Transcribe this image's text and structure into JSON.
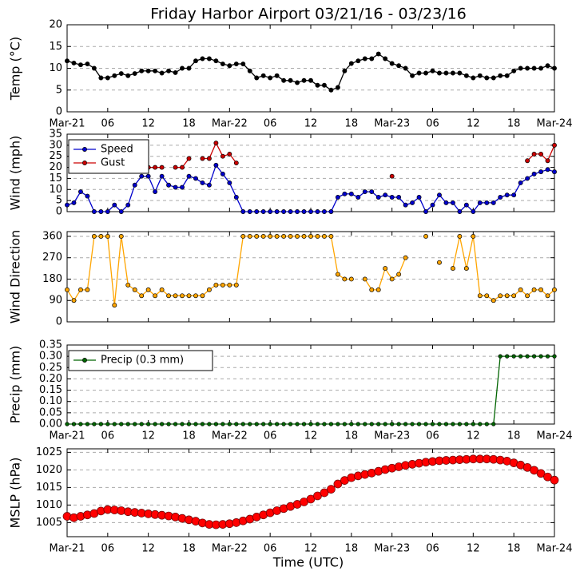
{
  "title": "Friday Harbor Airport 03/21/16 - 03/23/16",
  "xlabel": "Time (UTC)",
  "x": [
    0,
    1,
    2,
    3,
    4,
    5,
    6,
    7,
    8,
    9,
    10,
    11,
    12,
    13,
    14,
    15,
    16,
    17,
    18,
    19,
    20,
    21,
    22,
    23,
    24,
    25,
    26,
    27,
    28,
    29,
    30,
    31,
    32,
    33,
    34,
    35,
    36,
    37,
    38,
    39,
    40,
    41,
    42,
    43,
    44,
    45,
    46,
    47,
    48,
    49,
    50,
    51,
    52,
    53,
    54,
    55,
    56,
    57,
    58,
    59,
    60,
    61,
    62,
    63,
    64,
    65,
    66,
    67,
    68,
    69,
    70,
    71,
    72
  ],
  "xlim": [
    0,
    72
  ],
  "xticks": [
    {
      "value": 0,
      "label": "Mar-21"
    },
    {
      "value": 6,
      "label": "06"
    },
    {
      "value": 12,
      "label": "12"
    },
    {
      "value": 18,
      "label": "18"
    },
    {
      "value": 24,
      "label": "Mar-22"
    },
    {
      "value": 30,
      "label": "06"
    },
    {
      "value": 36,
      "label": "12"
    },
    {
      "value": 42,
      "label": "18"
    },
    {
      "value": 48,
      "label": "Mar-23"
    },
    {
      "value": 54,
      "label": "06"
    },
    {
      "value": 60,
      "label": "12"
    },
    {
      "value": 66,
      "label": "18"
    },
    {
      "value": 72,
      "label": "Mar-24"
    }
  ],
  "chart_data": [
    {
      "type": "line",
      "ylabel": "Temp (°C)",
      "ylim": [
        0,
        20
      ],
      "yticks": [
        0,
        5,
        10,
        15,
        20
      ],
      "grid": true,
      "x_tick_labels": true,
      "series": [
        {
          "name": "Temp",
          "color": "#000000",
          "values": [
            11.7,
            11.2,
            10.8,
            11,
            10,
            7.8,
            7.8,
            8.3,
            8.8,
            8.3,
            8.8,
            9.4,
            9.4,
            9.4,
            8.9,
            9.4,
            9,
            10,
            10,
            11.7,
            12.2,
            12.2,
            11.7,
            11,
            10.6,
            11,
            11,
            9.4,
            7.8,
            8.3,
            7.8,
            8.3,
            7.2,
            7.2,
            6.7,
            7.2,
            7.2,
            6.1,
            6.1,
            5,
            5.6,
            9.4,
            11.1,
            11.7,
            12.2,
            12.2,
            13.3,
            12.2,
            11.1,
            10.6,
            10,
            8.3,
            8.9,
            8.9,
            9.4,
            8.9,
            8.9,
            8.9,
            8.9,
            8.3,
            7.8,
            8.3,
            7.8,
            7.8,
            8.3,
            8.3,
            9.4,
            10,
            10,
            10,
            10,
            10.6,
            10
          ]
        }
      ]
    },
    {
      "type": "line",
      "ylabel": "Wind (mph)",
      "ylim": [
        0,
        35
      ],
      "yticks": [
        0,
        5,
        10,
        15,
        20,
        25,
        30,
        35
      ],
      "grid": true,
      "x_tick_labels": false,
      "legend": "upper left",
      "series": [
        {
          "name": "Speed",
          "color": "#0000cc",
          "values": [
            3,
            4,
            9,
            7,
            0,
            0,
            0,
            3,
            0,
            3,
            12,
            16,
            16,
            9,
            16,
            12,
            11,
            11,
            16,
            15,
            13,
            12,
            21,
            17,
            13,
            6.5,
            0,
            0,
            0,
            0,
            0,
            0,
            0,
            0,
            0,
            0,
            0,
            0,
            0,
            0,
            6.5,
            8,
            8,
            6.5,
            9,
            9,
            6.5,
            7.5,
            6.5,
            6.5,
            3,
            4,
            6.5,
            0,
            3,
            7.5,
            4,
            4,
            0,
            3,
            0,
            4,
            4,
            4,
            6.5,
            7.5,
            7.5,
            13,
            15,
            17,
            18,
            19,
            18
          ]
        },
        {
          "name": "Gust",
          "color": "#cc0000",
          "values": [
            null,
            null,
            null,
            null,
            null,
            null,
            null,
            null,
            null,
            null,
            null,
            21,
            20,
            20,
            20,
            null,
            20,
            20,
            24,
            null,
            24,
            24,
            31,
            25,
            26,
            22,
            null,
            null,
            null,
            null,
            null,
            null,
            null,
            null,
            null,
            null,
            null,
            null,
            null,
            null,
            null,
            null,
            null,
            null,
            null,
            null,
            null,
            null,
            16,
            null,
            null,
            null,
            null,
            null,
            null,
            null,
            null,
            null,
            null,
            null,
            null,
            null,
            null,
            null,
            null,
            null,
            null,
            null,
            23,
            26,
            26,
            23,
            30
          ]
        }
      ]
    },
    {
      "type": "line",
      "ylabel": "Wind Direction",
      "ylim": [
        0,
        380
      ],
      "yticks": [
        0,
        90,
        180,
        270,
        360
      ],
      "grid": true,
      "x_tick_labels": false,
      "series": [
        {
          "name": "Direction",
          "color": "#ffa500",
          "values": [
            135,
            90,
            135,
            135,
            360,
            360,
            360,
            70,
            360,
            155,
            135,
            110,
            135,
            110,
            135,
            110,
            110,
            110,
            110,
            110,
            110,
            135,
            155,
            155,
            155,
            155,
            360,
            360,
            360,
            360,
            360,
            360,
            360,
            360,
            360,
            360,
            360,
            360,
            360,
            360,
            200,
            180,
            180,
            null,
            180,
            135,
            135,
            225,
            180,
            200,
            270,
            null,
            null,
            360,
            null,
            250,
            null,
            225,
            360,
            225,
            360,
            110,
            110,
            90,
            110,
            110,
            110,
            135,
            110,
            135,
            135,
            110,
            135
          ]
        }
      ]
    },
    {
      "type": "line",
      "ylabel": "Precip (mm)",
      "ylim": [
        0,
        0.35
      ],
      "yticks": [
        {
          "value": 0,
          "label": "0.00"
        },
        0.05,
        {
          "value": 0.1,
          "label": "0.10"
        },
        0.15,
        {
          "value": 0.2,
          "label": "0.20"
        },
        0.25,
        {
          "value": 0.3,
          "label": "0.30"
        },
        0.35
      ],
      "grid": true,
      "x_tick_labels": true,
      "legend": "upper left",
      "series": [
        {
          "name": "Precip (0.3 mm)",
          "color": "#006400",
          "values": [
            0,
            0,
            0,
            0,
            0,
            0,
            0,
            0,
            0,
            0,
            0,
            0,
            0,
            0,
            0,
            0,
            0,
            0,
            0,
            0,
            0,
            0,
            0,
            0,
            0,
            0,
            0,
            0,
            0,
            0,
            0,
            0,
            0,
            0,
            0,
            0,
            0,
            0,
            0,
            0,
            0,
            0,
            0,
            0,
            0,
            0,
            0,
            0,
            0,
            0,
            0,
            0,
            0,
            0,
            0,
            0,
            0,
            0,
            0,
            0,
            0,
            0,
            0,
            0,
            0.3,
            0.3,
            0.3,
            0.3,
            0.3,
            0.3,
            0.3,
            0.3,
            0.3
          ]
        }
      ]
    },
    {
      "type": "line",
      "ylabel": "MSLP (hPa)",
      "ylim": [
        1001,
        1026
      ],
      "yticks": [
        1005,
        1010,
        1015,
        1020,
        1025
      ],
      "grid": true,
      "x_tick_labels": true,
      "series": [
        {
          "name": "MSLP",
          "color": "#ff0000",
          "values": [
            1006.8,
            1006.4,
            1006.8,
            1007.2,
            1007.6,
            1008.3,
            1008.7,
            1008.6,
            1008.4,
            1008.1,
            1007.9,
            1007.7,
            1007.5,
            1007.3,
            1007.1,
            1006.9,
            1006.6,
            1006.2,
            1005.8,
            1005.4,
            1004.9,
            1004.5,
            1004.4,
            1004.5,
            1004.7,
            1005,
            1005.5,
            1006,
            1006.6,
            1007.2,
            1007.8,
            1008.4,
            1009,
            1009.6,
            1010.2,
            1010.9,
            1011.7,
            1012.6,
            1013.5,
            1014.5,
            1016,
            1017,
            1017.8,
            1018.3,
            1018.7,
            1019.1,
            1019.6,
            1020.1,
            1020.5,
            1020.9,
            1021.3,
            1021.6,
            1021.9,
            1022.2,
            1022.4,
            1022.6,
            1022.7,
            1022.8,
            1022.9,
            1023,
            1023.1,
            1023.1,
            1023.1,
            1023,
            1022.8,
            1022.5,
            1022,
            1021.4,
            1020.7,
            1019.9,
            1019,
            1018,
            1017.1
          ]
        }
      ]
    }
  ]
}
